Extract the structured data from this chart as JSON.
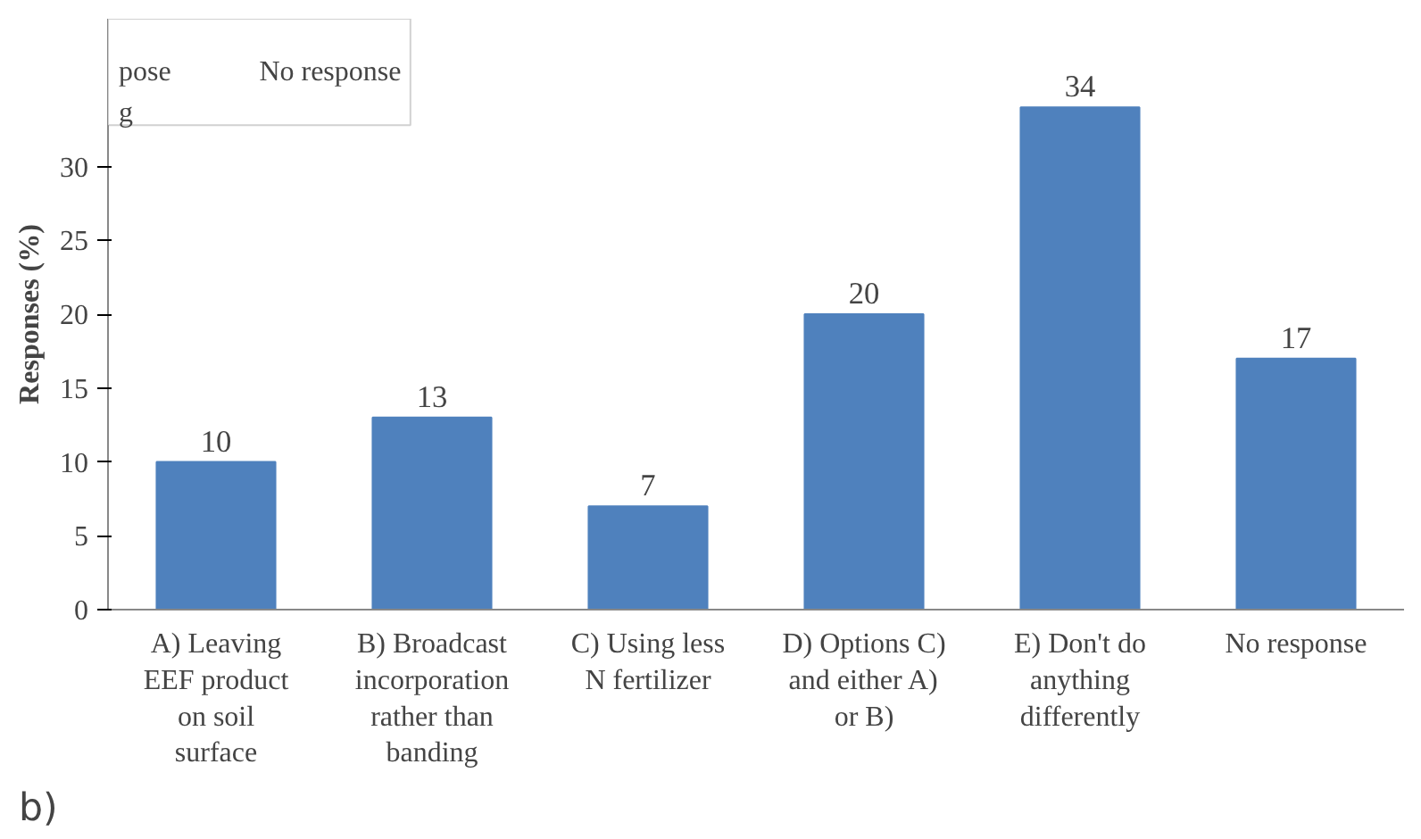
{
  "chart_data": {
    "type": "bar",
    "ylabel": "Responses (%)",
    "categories": [
      "A) Leaving\nEEF product\non soil\nsurface",
      "B) Broadcast\nincorporation\nrather than\nbanding",
      "C) Using less\nN fertilizer",
      "D) Options C)\nand either A)\nor B)",
      "E) Don't do\nanything\ndifferently",
      "No response"
    ],
    "values": [
      10,
      13,
      7,
      20,
      34,
      17
    ],
    "color": "#4f81bd",
    "data_labels": true,
    "ylim": [
      0,
      40
    ],
    "yticks": [
      0,
      5,
      10,
      15,
      20,
      25,
      30
    ],
    "grid": false,
    "annotations": [
      "b)",
      "pose",
      "g",
      "No response"
    ]
  }
}
